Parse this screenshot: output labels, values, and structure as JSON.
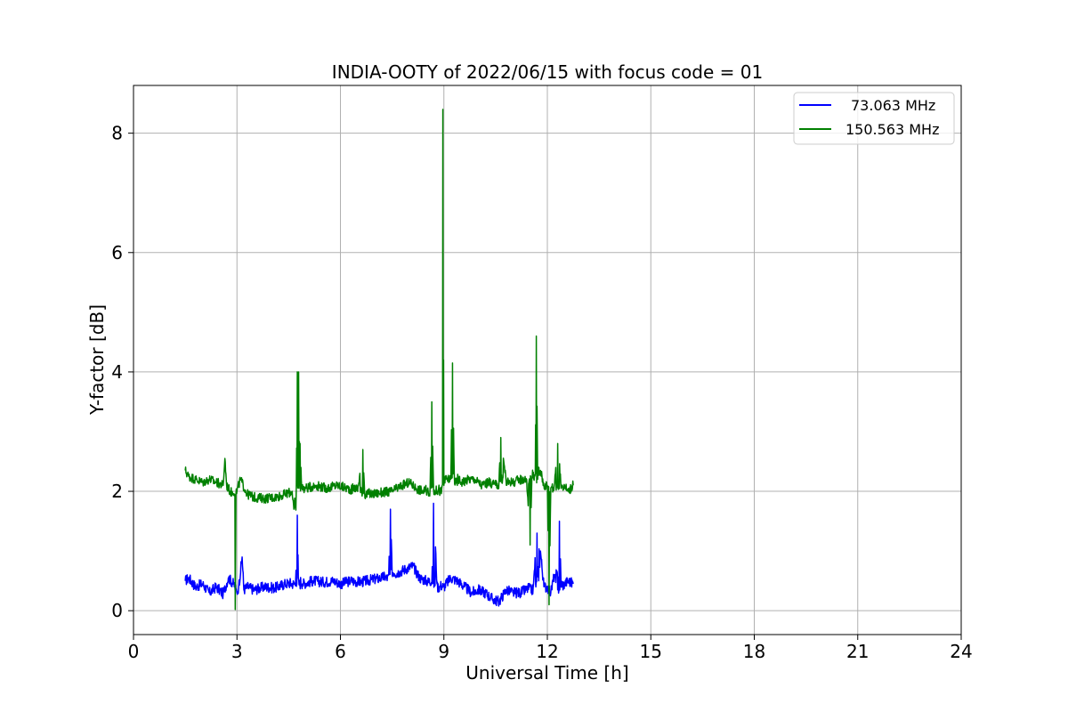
{
  "chart_data": {
    "type": "line",
    "title": "INDIA-OOTY of 2022/06/15 with focus code = 01",
    "xlabel": "Universal Time [h]",
    "ylabel": "Y-factor [dB]",
    "xlim": [
      0,
      24
    ],
    "ylim": [
      -0.4,
      8.8
    ],
    "xticks": [
      0,
      3,
      6,
      9,
      12,
      15,
      18,
      21,
      24
    ],
    "xtick_labels": [
      "0",
      "3",
      "6",
      "9",
      "12",
      "15",
      "18",
      "21",
      "24"
    ],
    "yticks": [
      0,
      2,
      4,
      6,
      8
    ],
    "ytick_labels": [
      "0",
      "2",
      "4",
      "6",
      "8"
    ],
    "grid": true,
    "legend_position": "top-right",
    "series": [
      {
        "name": "73.063 MHz",
        "color": "#0000ff",
        "x": [
          1.5,
          1.6,
          1.8,
          2.0,
          2.2,
          2.4,
          2.6,
          2.75,
          2.9,
          2.97,
          3.0,
          3.05,
          3.15,
          3.2,
          3.3,
          3.5,
          3.8,
          4.1,
          4.4,
          4.7,
          4.75,
          4.78,
          4.9,
          5.2,
          5.5,
          5.8,
          6.0,
          6.3,
          6.6,
          6.9,
          7.2,
          7.4,
          7.45,
          7.5,
          7.7,
          7.9,
          8.1,
          8.3,
          8.5,
          8.65,
          8.7,
          8.8,
          9.0,
          9.2,
          9.4,
          9.6,
          9.8,
          10.0,
          10.2,
          10.4,
          10.6,
          10.8,
          11.0,
          11.2,
          11.4,
          11.6,
          11.7,
          11.75,
          11.8,
          11.9,
          12.0,
          12.1,
          12.2,
          12.3,
          12.35,
          12.4,
          12.5,
          12.6,
          12.75
        ],
        "y": [
          0.5,
          0.55,
          0.4,
          0.45,
          0.3,
          0.4,
          0.28,
          0.55,
          0.45,
          0.35,
          0.3,
          0.4,
          0.9,
          0.35,
          0.4,
          0.35,
          0.4,
          0.38,
          0.45,
          0.48,
          1.6,
          0.55,
          0.45,
          0.5,
          0.48,
          0.5,
          0.45,
          0.5,
          0.48,
          0.52,
          0.55,
          0.6,
          1.7,
          0.6,
          0.65,
          0.7,
          0.75,
          0.55,
          0.5,
          0.45,
          1.8,
          0.45,
          0.4,
          0.55,
          0.5,
          0.4,
          0.3,
          0.35,
          0.3,
          0.2,
          0.15,
          0.35,
          0.3,
          0.3,
          0.35,
          0.45,
          1.3,
          0.5,
          1.0,
          0.4,
          0.4,
          0.3,
          0.6,
          0.35,
          1.5,
          0.4,
          0.45,
          0.5,
          0.45
        ]
      },
      {
        "name": "150.563 MHz",
        "color": "#008000",
        "x": [
          1.5,
          1.6,
          1.8,
          2.0,
          2.2,
          2.4,
          2.6,
          2.65,
          2.7,
          2.8,
          2.93,
          2.95,
          2.97,
          3.0,
          3.1,
          3.3,
          3.5,
          3.8,
          4.1,
          4.4,
          4.6,
          4.65,
          4.72,
          4.75,
          4.8,
          4.83,
          4.88,
          5.0,
          5.3,
          5.6,
          5.9,
          6.2,
          6.5,
          6.65,
          6.7,
          6.9,
          7.2,
          7.5,
          7.8,
          8.0,
          8.2,
          8.4,
          8.6,
          8.65,
          8.7,
          8.8,
          8.95,
          8.97,
          9.0,
          9.05,
          9.2,
          9.25,
          9.3,
          9.5,
          9.7,
          9.9,
          10.1,
          10.3,
          10.5,
          10.6,
          10.65,
          10.8,
          11.0,
          11.2,
          11.4,
          11.5,
          11.55,
          11.65,
          11.68,
          11.72,
          11.8,
          11.9,
          12.0,
          12.05,
          12.1,
          12.2,
          12.3,
          12.4,
          12.5,
          12.6,
          12.75
        ],
        "y": [
          2.35,
          2.25,
          2.2,
          2.15,
          2.2,
          2.15,
          2.1,
          2.55,
          2.1,
          2.0,
          1.95,
          0.02,
          1.95,
          2.0,
          2.2,
          1.95,
          1.9,
          1.88,
          1.9,
          1.95,
          2.0,
          1.7,
          2.05,
          4.0,
          2.05,
          2.8,
          2.05,
          2.05,
          2.1,
          2.05,
          2.1,
          2.05,
          2.0,
          2.7,
          2.0,
          1.95,
          1.98,
          2.0,
          2.1,
          2.15,
          2.05,
          2.0,
          2.05,
          3.5,
          2.05,
          2.0,
          2.1,
          8.4,
          2.1,
          2.2,
          2.2,
          4.15,
          2.3,
          2.15,
          2.2,
          2.2,
          2.1,
          2.15,
          2.1,
          2.2,
          2.9,
          2.2,
          2.15,
          2.2,
          2.2,
          1.1,
          2.2,
          2.3,
          4.6,
          2.2,
          2.35,
          2.1,
          2.1,
          0.1,
          2.05,
          2.1,
          2.8,
          2.05,
          2.1,
          2.0,
          2.1
        ]
      }
    ]
  }
}
